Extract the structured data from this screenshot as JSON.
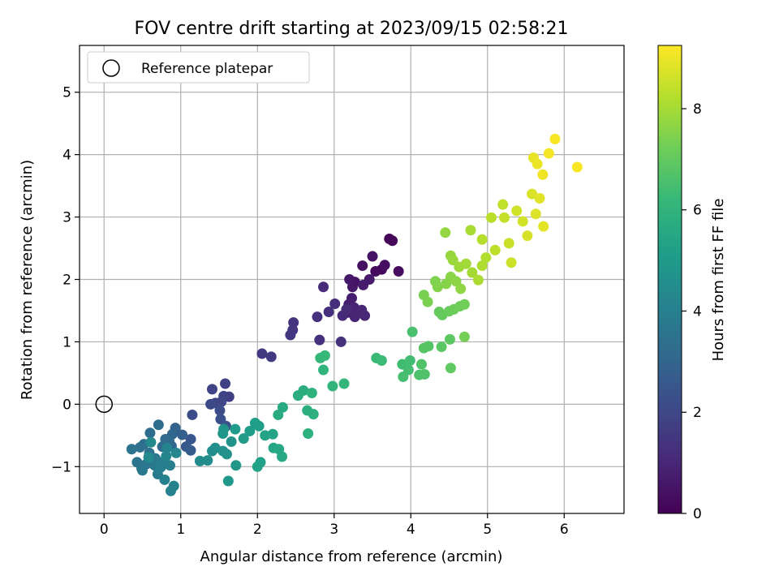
{
  "chart_data": {
    "type": "scatter",
    "title": "FOV centre drift starting at 2023/09/15 02:58:21",
    "xlabel": "Angular distance from reference (arcmin)",
    "ylabel": "Rotation from reference (arcmin)",
    "xlim": [
      -0.32,
      6.78
    ],
    "ylim": [
      -1.75,
      5.75
    ],
    "xticks": [
      0,
      1,
      2,
      3,
      4,
      5,
      6
    ],
    "yticks": [
      -1,
      0,
      1,
      2,
      3,
      4,
      5
    ],
    "grid": true,
    "legend": {
      "placement": "top-left",
      "entries": [
        "Reference platepar"
      ]
    },
    "reference_point": {
      "x": 0,
      "y": 0
    },
    "colorbar": {
      "label": "Hours from first FF file",
      "colormap": "viridis",
      "range": [
        0,
        9.25
      ],
      "ticks": [
        0,
        2,
        4,
        6,
        8
      ]
    },
    "series": [
      {
        "color_value": "hours",
        "points": [
          [
            3.72,
            2.65,
            0.1
          ],
          [
            3.76,
            2.62,
            0.15
          ],
          [
            3.62,
            2.16,
            0.2
          ],
          [
            3.54,
            2.13,
            0.25
          ],
          [
            3.84,
            2.13,
            0.3
          ],
          [
            3.66,
            2.23,
            0.35
          ],
          [
            3.37,
            2.22,
            0.4
          ],
          [
            3.5,
            2.37,
            0.45
          ],
          [
            3.27,
            1.96,
            0.5
          ],
          [
            3.24,
            1.88,
            0.55
          ],
          [
            3.2,
            2.0,
            0.6
          ],
          [
            3.46,
            2.0,
            0.65
          ],
          [
            3.38,
            1.91,
            0.7
          ],
          [
            3.23,
            1.7,
            0.75
          ],
          [
            3.19,
            1.6,
            0.8
          ],
          [
            3.18,
            1.47,
            0.85
          ],
          [
            3.26,
            1.55,
            0.9
          ],
          [
            3.27,
            1.4,
            0.95
          ],
          [
            3.36,
            1.51,
            1.0
          ],
          [
            3.4,
            1.42,
            1.05
          ],
          [
            3.11,
            1.42,
            1.1
          ],
          [
            3.16,
            1.52,
            1.15
          ],
          [
            2.86,
            1.88,
            1.15
          ],
          [
            3.01,
            1.61,
            1.2
          ],
          [
            2.93,
            1.48,
            1.25
          ],
          [
            2.78,
            1.4,
            1.3
          ],
          [
            2.81,
            1.03,
            1.3
          ],
          [
            3.09,
            1.0,
            1.35
          ],
          [
            2.47,
            1.31,
            1.4
          ],
          [
            2.46,
            1.19,
            1.45
          ],
          [
            2.43,
            1.11,
            1.5
          ],
          [
            2.06,
            0.81,
            1.55
          ],
          [
            2.18,
            0.76,
            1.6
          ],
          [
            1.63,
            0.12,
            1.7
          ],
          [
            1.58,
            0.33,
            1.8
          ],
          [
            1.56,
            0.13,
            1.85
          ],
          [
            1.41,
            0.24,
            1.9
          ],
          [
            1.45,
            0.02,
            1.95
          ],
          [
            1.53,
            0.04,
            2.0
          ],
          [
            1.39,
            0.0,
            2.1
          ],
          [
            1.15,
            -0.17,
            2.15
          ],
          [
            1.51,
            -0.1,
            2.2
          ],
          [
            1.52,
            -0.24,
            2.3
          ],
          [
            1.59,
            -0.35,
            2.4
          ],
          [
            1.13,
            -0.56,
            2.5
          ],
          [
            1.07,
            -0.68,
            2.6
          ],
          [
            1.13,
            -0.74,
            2.7
          ],
          [
            1.02,
            -0.49,
            2.8
          ],
          [
            0.93,
            -0.38,
            2.9
          ],
          [
            0.89,
            -0.48,
            3.0
          ],
          [
            0.88,
            -0.67,
            3.05
          ],
          [
            0.85,
            -0.59,
            3.1
          ],
          [
            0.8,
            -0.56,
            3.15
          ],
          [
            0.76,
            -0.68,
            3.2
          ],
          [
            0.71,
            -0.33,
            3.25
          ],
          [
            0.6,
            -0.46,
            3.3
          ],
          [
            0.52,
            -0.64,
            3.35
          ],
          [
            0.47,
            -0.69,
            3.4
          ],
          [
            0.59,
            -0.78,
            3.45
          ],
          [
            0.36,
            -0.72,
            3.5
          ],
          [
            0.43,
            -0.93,
            3.55
          ],
          [
            0.49,
            -1.03,
            3.6
          ],
          [
            0.55,
            -0.96,
            3.65
          ],
          [
            0.5,
            -1.06,
            3.7
          ],
          [
            0.67,
            -0.87,
            3.75
          ],
          [
            0.66,
            -0.98,
            3.8
          ],
          [
            0.7,
            -1.12,
            3.85
          ],
          [
            0.74,
            -1.01,
            3.9
          ],
          [
            0.78,
            -0.92,
            3.95
          ],
          [
            0.86,
            -0.98,
            4.0
          ],
          [
            0.79,
            -1.21,
            4.05
          ],
          [
            0.87,
            -1.39,
            4.1
          ],
          [
            0.91,
            -1.31,
            4.15
          ],
          [
            0.82,
            -0.7,
            4.2
          ],
          [
            0.81,
            -0.83,
            4.25
          ],
          [
            0.94,
            -0.78,
            4.3
          ],
          [
            0.61,
            -0.61,
            4.35
          ],
          [
            0.58,
            -0.85,
            4.4
          ],
          [
            1.25,
            -0.91,
            4.45
          ],
          [
            1.35,
            -0.9,
            4.5
          ],
          [
            1.41,
            -0.75,
            4.55
          ],
          [
            1.45,
            -0.7,
            4.6
          ],
          [
            1.55,
            -0.75,
            4.65
          ],
          [
            1.6,
            -0.8,
            4.7
          ],
          [
            1.66,
            -0.6,
            4.75
          ],
          [
            1.56,
            -0.4,
            4.8
          ],
          [
            1.55,
            -0.47,
            4.85
          ],
          [
            1.72,
            -0.98,
            4.9
          ],
          [
            1.62,
            -1.23,
            4.95
          ],
          [
            1.71,
            -0.4,
            5.0
          ],
          [
            1.82,
            -0.55,
            5.05
          ],
          [
            1.9,
            -0.43,
            5.1
          ],
          [
            1.97,
            -0.3,
            5.15
          ],
          [
            2.02,
            -0.35,
            5.2
          ],
          [
            2.04,
            -0.93,
            5.25
          ],
          [
            2.0,
            -1.0,
            5.3
          ],
          [
            2.1,
            -0.5,
            5.35
          ],
          [
            2.2,
            -0.48,
            5.4
          ],
          [
            2.21,
            -0.7,
            5.45
          ],
          [
            2.28,
            -0.72,
            5.5
          ],
          [
            2.32,
            -0.84,
            5.55
          ],
          [
            2.33,
            -0.05,
            5.6
          ],
          [
            2.27,
            -0.17,
            5.65
          ],
          [
            2.53,
            0.14,
            5.7
          ],
          [
            2.6,
            0.22,
            5.75
          ],
          [
            2.65,
            -0.1,
            5.8
          ],
          [
            2.73,
            -0.16,
            5.85
          ],
          [
            2.66,
            -0.47,
            5.9
          ],
          [
            2.71,
            0.18,
            5.95
          ],
          [
            2.86,
            0.55,
            6.0
          ],
          [
            2.98,
            0.29,
            6.05
          ],
          [
            3.13,
            0.33,
            6.1
          ],
          [
            2.82,
            0.74,
            6.15
          ],
          [
            2.88,
            0.78,
            6.2
          ],
          [
            3.55,
            0.74,
            6.25
          ],
          [
            3.62,
            0.7,
            6.3
          ],
          [
            3.89,
            0.64,
            6.35
          ],
          [
            3.99,
            0.7,
            6.4
          ],
          [
            3.97,
            0.55,
            6.45
          ],
          [
            3.9,
            0.44,
            6.5
          ],
          [
            4.02,
            1.16,
            6.55
          ],
          [
            4.11,
            0.47,
            6.6
          ],
          [
            4.18,
            0.48,
            6.65
          ],
          [
            4.14,
            0.64,
            6.7
          ],
          [
            4.23,
            0.93,
            6.75
          ],
          [
            4.17,
            0.9,
            6.8
          ],
          [
            4.4,
            0.92,
            6.85
          ],
          [
            4.51,
            1.04,
            6.9
          ],
          [
            4.52,
            0.58,
            6.95
          ],
          [
            4.41,
            1.43,
            7.0
          ],
          [
            4.37,
            1.48,
            7.05
          ],
          [
            4.5,
            1.49,
            7.1
          ],
          [
            4.56,
            1.52,
            7.15
          ],
          [
            4.64,
            1.57,
            7.2
          ],
          [
            4.7,
            1.6,
            7.25
          ],
          [
            4.7,
            1.08,
            7.3
          ],
          [
            4.17,
            1.75,
            7.35
          ],
          [
            4.22,
            1.64,
            7.4
          ],
          [
            4.32,
            1.97,
            7.45
          ],
          [
            4.35,
            1.88,
            7.5
          ],
          [
            4.46,
            1.93,
            7.55
          ],
          [
            4.52,
            2.04,
            7.6
          ],
          [
            4.59,
            1.97,
            7.65
          ],
          [
            4.65,
            1.85,
            7.7
          ],
          [
            4.45,
            2.75,
            7.75
          ],
          [
            4.52,
            2.38,
            7.8
          ],
          [
            4.55,
            2.31,
            7.85
          ],
          [
            4.63,
            2.2,
            7.9
          ],
          [
            4.72,
            2.25,
            7.95
          ],
          [
            4.8,
            2.11,
            8.0
          ],
          [
            4.78,
            2.79,
            8.05
          ],
          [
            4.88,
            1.99,
            8.1
          ],
          [
            4.93,
            2.22,
            8.15
          ],
          [
            4.98,
            2.35,
            8.2
          ],
          [
            4.93,
            2.64,
            8.25
          ],
          [
            5.05,
            2.99,
            8.3
          ],
          [
            5.1,
            2.47,
            8.35
          ],
          [
            5.2,
            3.2,
            8.4
          ],
          [
            5.22,
            2.99,
            8.45
          ],
          [
            5.28,
            2.58,
            8.5
          ],
          [
            5.31,
            2.27,
            8.55
          ],
          [
            5.38,
            3.1,
            8.6
          ],
          [
            5.46,
            2.93,
            8.65
          ],
          [
            5.52,
            2.7,
            8.7
          ],
          [
            5.58,
            3.37,
            8.75
          ],
          [
            5.63,
            3.05,
            8.8
          ],
          [
            5.68,
            3.3,
            8.85
          ],
          [
            5.73,
            2.85,
            8.9
          ],
          [
            5.6,
            3.95,
            8.95
          ],
          [
            5.65,
            3.85,
            9.0
          ],
          [
            5.72,
            3.68,
            9.05
          ],
          [
            5.8,
            4.02,
            9.1
          ],
          [
            5.88,
            4.25,
            9.15
          ],
          [
            6.17,
            3.8,
            9.2
          ]
        ]
      }
    ]
  }
}
